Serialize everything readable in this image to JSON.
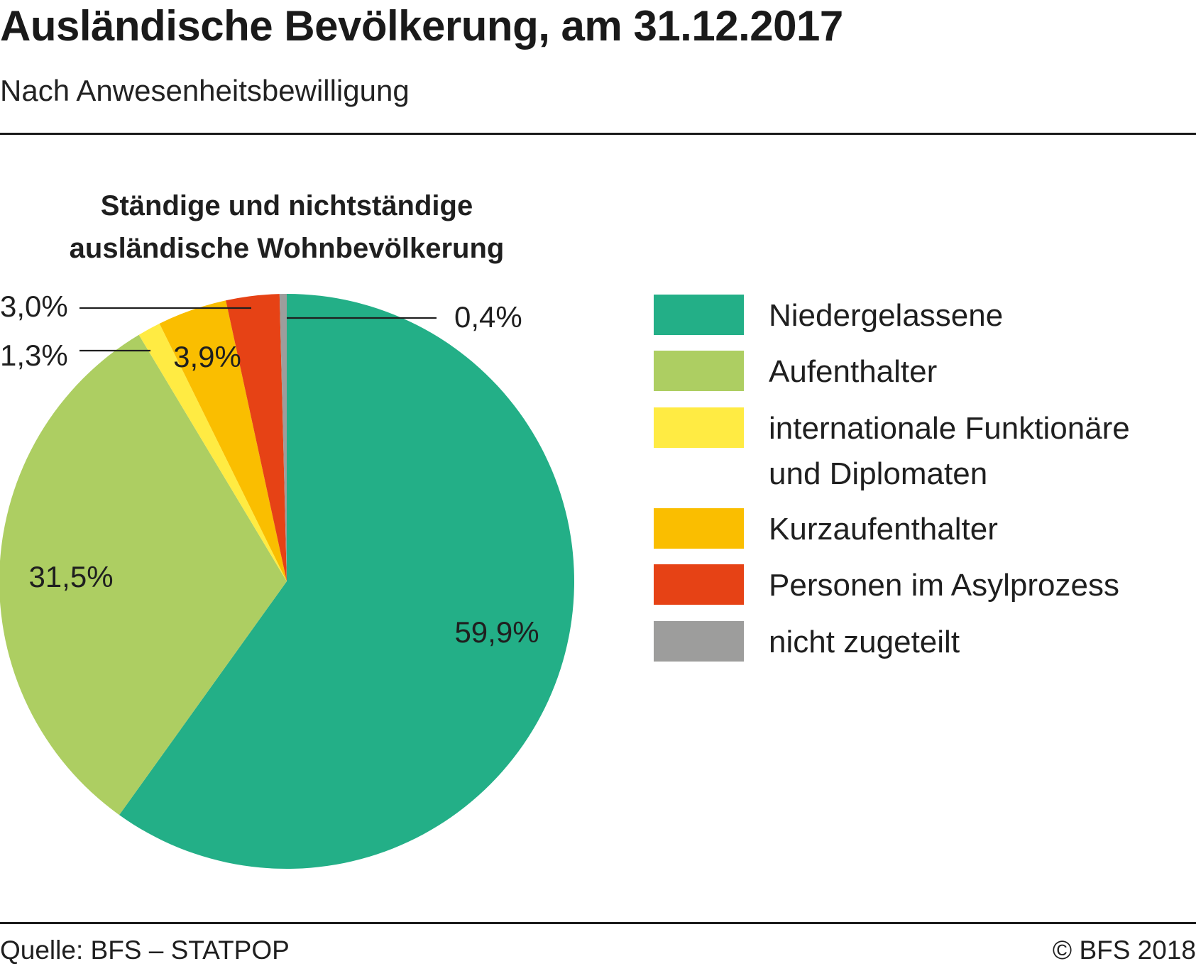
{
  "header": {
    "title": "Ausländische Bevölkerung, am 31.12.2017",
    "subtitle": "Nach Anwesenheitsbewilligung"
  },
  "chart_data": {
    "type": "pie",
    "title": "Ständige und nichtständige ausländische Wohnbevölkerung",
    "title_lines": [
      "Ständige und nichtständige",
      "ausländische Wohnbevölkerung"
    ],
    "start_angle_deg": 0,
    "direction": "clockwise",
    "slices": [
      {
        "name": "Niedergelassene",
        "value": 59.9,
        "label": "59,9%",
        "color": "#23AF87"
      },
      {
        "name": "Aufenthalter",
        "value": 31.5,
        "label": "31,5%",
        "color": "#ADCE62"
      },
      {
        "name": "internationale Funktionäre und Diplomaten",
        "value": 1.3,
        "label": "1,3%",
        "color": "#FFEB43"
      },
      {
        "name": "Kurzaufenthalter",
        "value": 3.9,
        "label": "3,9%",
        "color": "#FABE00"
      },
      {
        "name": "Personen im Asylprozess",
        "value": 3.0,
        "label": "3,0%",
        "color": "#E64215"
      },
      {
        "name": "nicht zugeteilt",
        "value": 0.4,
        "label": "0,4%",
        "color": "#9D9D9C"
      }
    ],
    "legend": {
      "placement": "right",
      "entries": [
        {
          "label_lines": [
            "Niedergelassene"
          ],
          "color": "#23AF87"
        },
        {
          "label_lines": [
            "Aufenthalter"
          ],
          "color": "#ADCE62"
        },
        {
          "label_lines": [
            "internationale Funktionäre",
            "und Diplomaten"
          ],
          "color": "#FFEB43"
        },
        {
          "label_lines": [
            "Kurzaufenthalter"
          ],
          "color": "#FABE00"
        },
        {
          "label_lines": [
            "Personen im Asylprozess"
          ],
          "color": "#E64215"
        },
        {
          "label_lines": [
            "nicht zugeteilt"
          ],
          "color": "#9D9D9C"
        }
      ]
    }
  },
  "footer": {
    "source": "Quelle: BFS – STATPOP",
    "copyright": "© BFS 2018"
  }
}
